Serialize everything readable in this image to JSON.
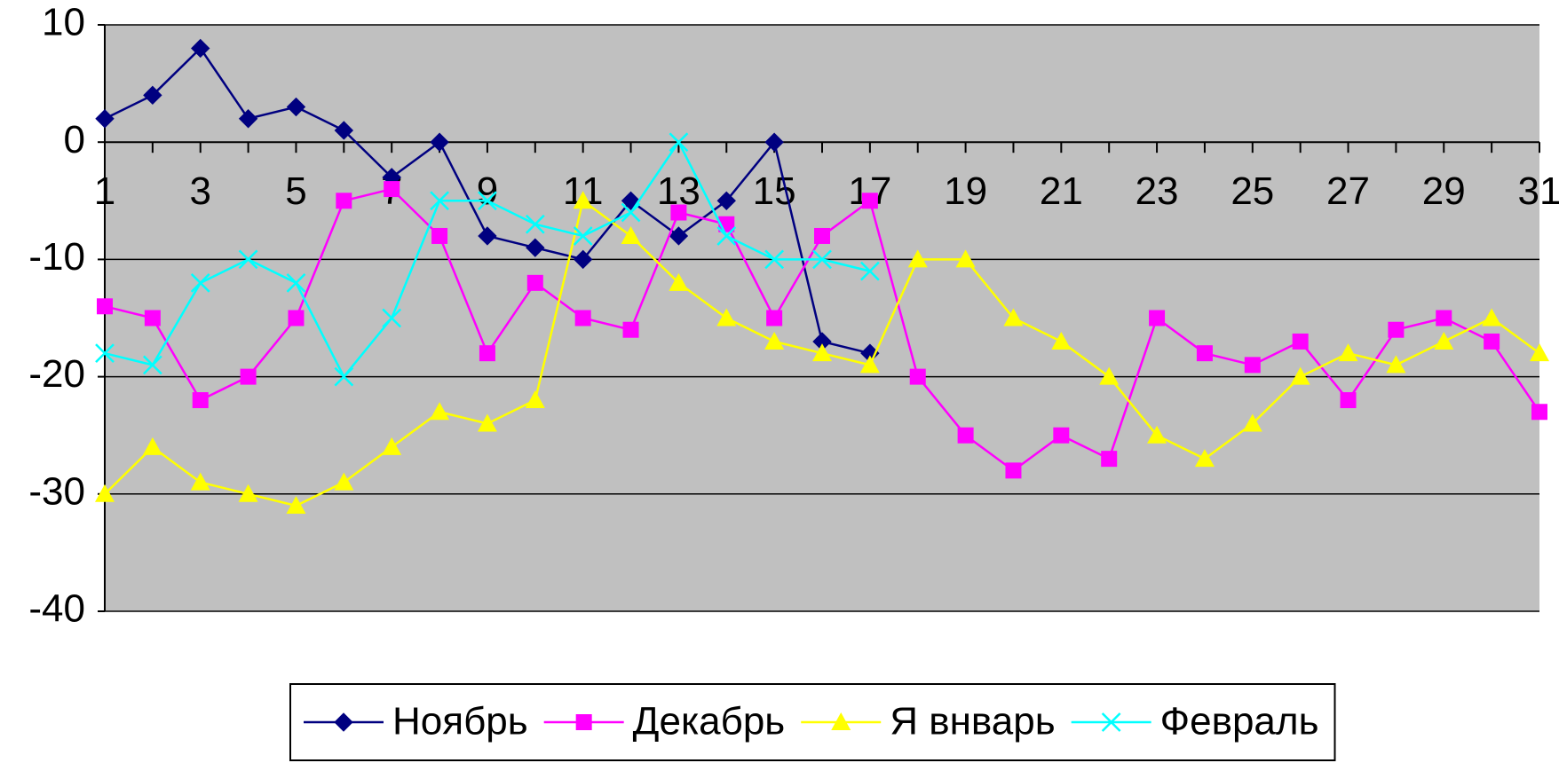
{
  "chart_data": {
    "type": "line",
    "categories": [
      1,
      null,
      3,
      null,
      5,
      null,
      7,
      null,
      9,
      null,
      11,
      null,
      13,
      null,
      15,
      null,
      17,
      null,
      19,
      null,
      21,
      null,
      23,
      null,
      25,
      null,
      27,
      null,
      29,
      null,
      31
    ],
    "series": [
      {
        "name": "Ноябрь",
        "color": "#000080",
        "marker": "diamond",
        "values": [
          2,
          4,
          8,
          2,
          3,
          1,
          -3,
          0,
          -8,
          -9,
          -10,
          -5,
          -8,
          -5,
          0,
          -17,
          -18,
          null,
          null,
          null,
          null,
          null,
          null,
          null,
          null,
          null,
          null,
          null,
          null,
          null,
          null
        ]
      },
      {
        "name": "Декабрь",
        "color": "#ff00ff",
        "marker": "square",
        "values": [
          -14,
          -15,
          -22,
          -20,
          -15,
          -5,
          -4,
          -8,
          -18,
          -12,
          -15,
          -16,
          -6,
          -7,
          -15,
          -8,
          -5,
          -20,
          -25,
          -28,
          -25,
          -27,
          -15,
          -18,
          -19,
          -17,
          -22,
          -16,
          -15,
          -17,
          -23
        ]
      },
      {
        "name": "Я внварь",
        "color": "#ffff00",
        "marker": "triangle",
        "values": [
          -30,
          -26,
          -29,
          -30,
          -31,
          -29,
          -26,
          -23,
          -24,
          -22,
          -5,
          -8,
          -12,
          -15,
          -17,
          -18,
          -19,
          -10,
          -10,
          -15,
          -17,
          -20,
          -25,
          -27,
          -24,
          -20,
          -18,
          -19,
          -17,
          -15,
          -18
        ]
      },
      {
        "name": "Февраль",
        "color": "#00ffff",
        "marker": "x",
        "values": [
          -18,
          -19,
          -12,
          -10,
          -12,
          -20,
          -15,
          -5,
          -5,
          -7,
          -8,
          -6,
          0,
          -8,
          -10,
          -10,
          -11,
          null,
          null,
          null,
          null,
          null,
          null,
          null,
          null,
          null,
          null,
          null,
          null,
          null,
          null
        ]
      }
    ],
    "ylim": [
      -40,
      10
    ],
    "yticks": [
      -40,
      -30,
      -20,
      -10,
      0,
      10
    ],
    "grid": true,
    "legend": "bottom"
  }
}
